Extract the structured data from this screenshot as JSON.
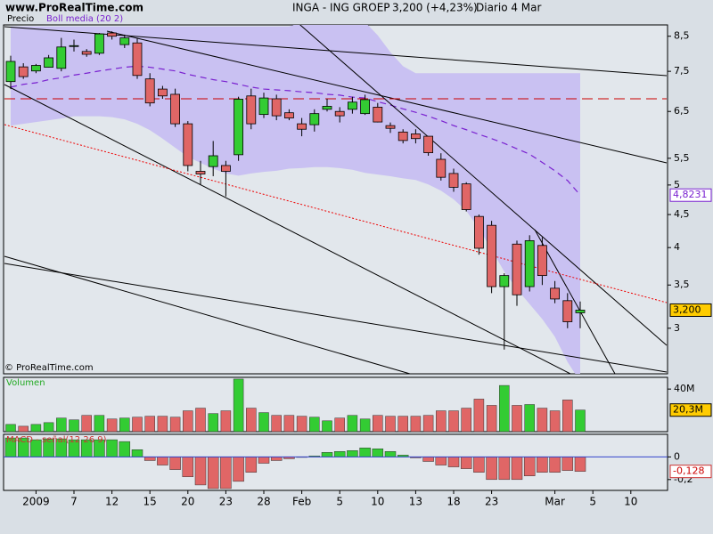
{
  "header": {
    "site": "www.ProRealTime.com",
    "instrument": "INGA - ING GROEP",
    "quote": "3,200 (+4,23%)",
    "period": "Diario 4 Mar"
  },
  "watermark": "© ProRealTime.com",
  "chart_data": [
    {
      "type": "candlestick",
      "name": "Precio",
      "categories": [
        null,
        null,
        "2009",
        null,
        null,
        "7",
        null,
        null,
        "12",
        null,
        null,
        "15",
        null,
        null,
        "20",
        null,
        null,
        "23",
        null,
        null,
        "28",
        null,
        null,
        "Feb",
        null,
        null,
        "5",
        null,
        null,
        "10",
        null,
        null,
        "13",
        null,
        null,
        "18",
        null,
        null,
        "23",
        null,
        null,
        null,
        null,
        "Mar",
        null,
        null,
        "5",
        null,
        null,
        "10",
        null,
        null
      ],
      "open": [
        7.23,
        7.62,
        7.51,
        7.61,
        7.58,
        8.2,
        8.05,
        8.0,
        8.6,
        8.25,
        8.3,
        7.3,
        7.04,
        6.91,
        6.22,
        5.25,
        5.34,
        5.36,
        5.57,
        6.87,
        6.43,
        6.8,
        6.47,
        6.22,
        6.2,
        6.55,
        6.5,
        6.55,
        6.45,
        6.6,
        6.18,
        6.04,
        6.0,
        5.95,
        5.48,
        5.21,
        5.02,
        4.47,
        4.33,
        3.48,
        4.05,
        3.48,
        4.03,
        3.46,
        3.31,
        3.17,
        null,
        null,
        null,
        null,
        null,
        null
      ],
      "high": [
        7.93,
        7.72,
        7.7,
        7.95,
        8.45,
        8.4,
        8.12,
        8.6,
        8.65,
        8.55,
        8.45,
        7.45,
        7.12,
        7.05,
        6.28,
        5.45,
        5.85,
        5.45,
        6.85,
        7.05,
        6.95,
        6.9,
        6.55,
        6.35,
        6.55,
        6.8,
        6.6,
        6.85,
        6.9,
        6.7,
        6.25,
        6.1,
        6.1,
        5.95,
        5.6,
        5.3,
        5.05,
        4.5,
        4.4,
        3.65,
        4.1,
        4.18,
        4.15,
        3.55,
        3.4,
        3.3,
        null,
        null,
        null,
        null,
        null,
        null
      ],
      "low": [
        7.04,
        7.3,
        7.45,
        7.6,
        7.5,
        8.05,
        7.9,
        7.95,
        8.4,
        8.15,
        7.3,
        6.62,
        6.8,
        6.15,
        5.25,
        5.0,
        5.16,
        4.8,
        5.45,
        6.1,
        6.35,
        6.3,
        6.3,
        5.95,
        6.05,
        6.5,
        6.25,
        6.45,
        6.42,
        6.25,
        6.02,
        5.8,
        5.8,
        5.55,
        5.08,
        4.88,
        4.55,
        3.9,
        3.4,
        2.78,
        3.25,
        3.42,
        3.5,
        3.28,
        3.0,
        3.0,
        null,
        null,
        null,
        null,
        null,
        null
      ],
      "close": [
        7.77,
        7.36,
        7.66,
        7.87,
        8.18,
        8.22,
        7.97,
        8.57,
        8.5,
        8.45,
        7.39,
        6.7,
        6.87,
        6.22,
        5.36,
        5.2,
        5.55,
        5.25,
        6.79,
        6.22,
        6.82,
        6.4,
        6.35,
        6.1,
        6.45,
        6.62,
        6.4,
        6.72,
        6.78,
        6.26,
        6.12,
        5.86,
        5.9,
        5.61,
        5.14,
        4.96,
        4.58,
        3.99,
        3.48,
        3.62,
        3.38,
        4.1,
        3.62,
        3.33,
        3.07,
        3.2,
        null,
        null,
        null,
        null,
        null,
        null
      ],
      "close_labels": [
        null,
        null,
        null,
        null,
        null,
        null,
        null,
        null,
        null,
        null,
        null,
        null,
        null,
        null,
        null,
        null,
        null,
        null,
        null,
        null,
        null,
        null,
        null,
        null,
        null,
        null,
        null,
        null,
        null,
        null,
        null,
        null,
        null,
        null,
        null,
        null,
        null,
        null,
        null,
        null,
        null,
        null,
        null,
        null,
        null,
        "3,200",
        null,
        null,
        null,
        null,
        null,
        null
      ],
      "up_color": "#33cc33",
      "down_color": "#e06666",
      "log_scale": true,
      "ylim": [
        2.55,
        8.85
      ],
      "yticks": [
        {
          "value": 8.5,
          "label": "8,5"
        },
        {
          "value": 7.5,
          "label": "7,5"
        },
        {
          "value": 6.5,
          "label": "6,5"
        },
        {
          "value": 5.5,
          "label": "5,5"
        },
        5,
        {
          "value": 4.5,
          "label": "4,5"
        },
        4,
        {
          "value": 3.5,
          "label": "3,5"
        },
        3
      ],
      "bollinger": {
        "name": "Boll media (20 2)",
        "color": "#7a22d0",
        "band_color": "#c9c1f2",
        "middle": [
          7.09,
          7.16,
          7.2,
          7.28,
          7.33,
          7.4,
          7.45,
          7.51,
          7.56,
          7.61,
          7.64,
          7.61,
          7.56,
          7.51,
          7.42,
          7.35,
          7.28,
          7.23,
          7.16,
          7.09,
          7.04,
          7.02,
          7.0,
          6.97,
          6.95,
          6.91,
          6.89,
          6.84,
          6.82,
          6.73,
          6.65,
          6.56,
          6.48,
          6.39,
          6.29,
          6.18,
          6.09,
          5.99,
          5.9,
          5.8,
          5.69,
          5.58,
          5.42,
          5.26,
          5.08,
          4.8231,
          null,
          null,
          null,
          null,
          null,
          null
        ],
        "upper": [
          8.8,
          8.8,
          8.8,
          8.8,
          8.8,
          8.8,
          8.8,
          8.8,
          8.8,
          8.8,
          8.8,
          8.8,
          8.8,
          8.8,
          8.8,
          8.8,
          8.8,
          8.8,
          8.8,
          8.8,
          8.8,
          8.8,
          8.8,
          8.94,
          8.94,
          8.94,
          8.94,
          8.94,
          8.94,
          8.53,
          8.03,
          7.64,
          7.45,
          7.45,
          7.45,
          7.45,
          7.45,
          7.45,
          7.45,
          7.45,
          7.45,
          7.45,
          7.45,
          7.45,
          7.45,
          7.45,
          null,
          null,
          null,
          null,
          null,
          null
        ],
        "lower": [
          6.18,
          6.22,
          6.26,
          6.3,
          6.34,
          6.39,
          6.39,
          6.39,
          6.37,
          6.32,
          6.22,
          6.08,
          5.9,
          5.71,
          5.53,
          5.41,
          5.3,
          5.21,
          5.17,
          5.21,
          5.24,
          5.26,
          5.3,
          5.31,
          5.33,
          5.33,
          5.31,
          5.28,
          5.22,
          5.19,
          5.16,
          5.12,
          5.09,
          5.01,
          4.9,
          4.75,
          4.56,
          4.28,
          3.97,
          3.67,
          3.45,
          3.27,
          3.1,
          2.91,
          2.66,
          2.48,
          null,
          null,
          null,
          null,
          null,
          null
        ],
        "value_labels": [
          null,
          null,
          null,
          null,
          null,
          null,
          null,
          null,
          null,
          null,
          null,
          null,
          null,
          null,
          null,
          null,
          null,
          null,
          null,
          null,
          null,
          null,
          null,
          null,
          null,
          null,
          null,
          null,
          null,
          null,
          null,
          null,
          null,
          null,
          null,
          null,
          null,
          null,
          null,
          null,
          null,
          null,
          null,
          null,
          null,
          "4,8231",
          null,
          null,
          null,
          null,
          null,
          null
        ]
      }
    },
    {
      "type": "bar",
      "name": "Volumen",
      "values": [
        6800000,
        5100000,
        6800000,
        8500000,
        12800000,
        11100000,
        15300000,
        15300000,
        11900000,
        12800000,
        13600000,
        14500000,
        14500000,
        13600000,
        19600000,
        22100000,
        17000000,
        19600000,
        49400000,
        22100000,
        17900000,
        15300000,
        15300000,
        14500000,
        13600000,
        10200000,
        12800000,
        15300000,
        11900000,
        15300000,
        14500000,
        14500000,
        14500000,
        15300000,
        19600000,
        19600000,
        22100000,
        30600000,
        24700000,
        43400000,
        24700000,
        25500000,
        22100000,
        19600000,
        29800000,
        20300000,
        null,
        null,
        null,
        null,
        null,
        null
      ],
      "value_labels": [
        null,
        null,
        null,
        null,
        null,
        null,
        null,
        null,
        null,
        null,
        null,
        null,
        null,
        null,
        null,
        null,
        null,
        null,
        null,
        null,
        null,
        null,
        null,
        null,
        null,
        null,
        null,
        null,
        null,
        null,
        null,
        null,
        null,
        null,
        null,
        null,
        null,
        null,
        null,
        null,
        null,
        null,
        null,
        null,
        null,
        "20,3M",
        null,
        null,
        null,
        null,
        null,
        null
      ],
      "ylim": [
        0,
        51000000
      ],
      "yticks": [
        {
          "value": 40000000,
          "label": "40M"
        }
      ]
    },
    {
      "type": "histogram",
      "name": "MACD - señal(12 26 9)",
      "values": [
        0.168,
        0.168,
        0.152,
        0.16,
        0.16,
        0.152,
        0.152,
        0.152,
        0.152,
        0.136,
        0.064,
        -0.032,
        -0.072,
        -0.112,
        -0.176,
        -0.248,
        -0.28,
        -0.28,
        -0.216,
        -0.136,
        -0.056,
        -0.032,
        -0.016,
        -0.004,
        0.008,
        0.04,
        0.048,
        0.056,
        0.08,
        0.072,
        0.048,
        0.016,
        -0.008,
        -0.04,
        -0.072,
        -0.088,
        -0.104,
        -0.136,
        -0.2,
        -0.2,
        -0.2,
        -0.168,
        -0.136,
        -0.136,
        -0.12,
        -0.128,
        null,
        null,
        null,
        null,
        null,
        null
      ],
      "value_labels": [
        null,
        null,
        null,
        null,
        null,
        null,
        null,
        null,
        null,
        null,
        null,
        null,
        null,
        null,
        null,
        null,
        null,
        null,
        null,
        null,
        null,
        null,
        null,
        null,
        null,
        null,
        null,
        null,
        null,
        null,
        null,
        null,
        null,
        null,
        null,
        null,
        null,
        null,
        null,
        null,
        null,
        null,
        null,
        null,
        null,
        "-0,128",
        null,
        null,
        null,
        null,
        null,
        null
      ],
      "up_color": "#33cc33",
      "down_color": "#e06666",
      "zero_color": "#3344cc",
      "ylim": [
        -0.296,
        0.2
      ],
      "yticks": [
        0,
        {
          "value": -0.2,
          "label": "-0,2"
        }
      ]
    }
  ]
}
